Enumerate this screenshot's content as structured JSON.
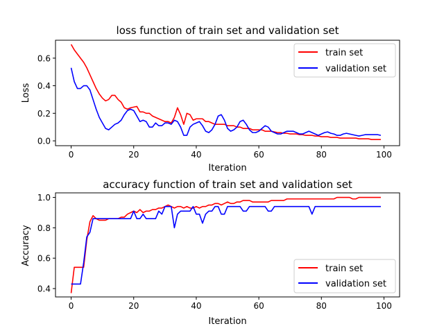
{
  "chart_data": [
    {
      "type": "line",
      "title": "loss function of train set and validation set",
      "xlabel": "Iteration",
      "ylabel": "Loss",
      "xlim": [
        -5,
        105
      ],
      "ylim": [
        -0.035,
        0.73
      ],
      "xticks": [
        0,
        20,
        40,
        60,
        80,
        100
      ],
      "xtick_labels": [
        "0",
        "20",
        "40",
        "60",
        "80",
        "100"
      ],
      "yticks": [
        0.0,
        0.2,
        0.4,
        0.6
      ],
      "ytick_labels": [
        "0.0",
        "0.2",
        "0.4",
        "0.6"
      ],
      "grid": false,
      "legend_position": "upper right",
      "series": [
        {
          "name": "train set",
          "color": "#ff0000",
          "x": [
            0,
            1,
            2,
            3,
            4,
            5,
            6,
            7,
            8,
            9,
            10,
            11,
            12,
            13,
            14,
            15,
            16,
            17,
            18,
            19,
            20,
            21,
            22,
            23,
            24,
            25,
            26,
            27,
            28,
            29,
            30,
            31,
            32,
            33,
            34,
            35,
            36,
            37,
            38,
            39,
            40,
            41,
            42,
            43,
            44,
            45,
            46,
            47,
            48,
            49,
            50,
            51,
            52,
            53,
            54,
            55,
            56,
            57,
            58,
            59,
            60,
            61,
            62,
            63,
            64,
            65,
            66,
            67,
            68,
            69,
            70,
            71,
            72,
            73,
            74,
            75,
            76,
            77,
            78,
            79,
            80,
            81,
            82,
            83,
            84,
            85,
            86,
            87,
            88,
            89,
            90,
            91,
            92,
            93,
            94,
            95,
            96,
            97,
            98,
            99
          ],
          "values": [
            0.7,
            0.66,
            0.63,
            0.6,
            0.57,
            0.53,
            0.48,
            0.43,
            0.38,
            0.34,
            0.31,
            0.29,
            0.3,
            0.33,
            0.33,
            0.3,
            0.28,
            0.24,
            0.23,
            0.24,
            0.245,
            0.25,
            0.21,
            0.21,
            0.2,
            0.2,
            0.18,
            0.17,
            0.16,
            0.15,
            0.14,
            0.14,
            0.13,
            0.17,
            0.24,
            0.19,
            0.12,
            0.2,
            0.19,
            0.15,
            0.16,
            0.16,
            0.16,
            0.14,
            0.14,
            0.13,
            0.12,
            0.12,
            0.12,
            0.12,
            0.11,
            0.11,
            0.11,
            0.1,
            0.1,
            0.09,
            0.09,
            0.09,
            0.08,
            0.08,
            0.08,
            0.08,
            0.07,
            0.07,
            0.07,
            0.065,
            0.06,
            0.06,
            0.055,
            0.055,
            0.05,
            0.05,
            0.05,
            0.045,
            0.045,
            0.04,
            0.04,
            0.04,
            0.035,
            0.035,
            0.03,
            0.03,
            0.03,
            0.025,
            0.025,
            0.025,
            0.02,
            0.02,
            0.02,
            0.02,
            0.02,
            0.02,
            0.015,
            0.015,
            0.015,
            0.015,
            0.01,
            0.01,
            0.01,
            0.01
          ]
        },
        {
          "name": "validation set",
          "color": "#0000ff",
          "x": [
            0,
            1,
            2,
            3,
            4,
            5,
            6,
            7,
            8,
            9,
            10,
            11,
            12,
            13,
            14,
            15,
            16,
            17,
            18,
            19,
            20,
            21,
            22,
            23,
            24,
            25,
            26,
            27,
            28,
            29,
            30,
            31,
            32,
            33,
            34,
            35,
            36,
            37,
            38,
            39,
            40,
            41,
            42,
            43,
            44,
            45,
            46,
            47,
            48,
            49,
            50,
            51,
            52,
            53,
            54,
            55,
            56,
            57,
            58,
            59,
            60,
            61,
            62,
            63,
            64,
            65,
            66,
            67,
            68,
            69,
            70,
            71,
            72,
            73,
            74,
            75,
            76,
            77,
            78,
            79,
            80,
            81,
            82,
            83,
            84,
            85,
            86,
            87,
            88,
            89,
            90,
            91,
            92,
            93,
            94,
            95,
            96,
            97,
            98,
            99
          ],
          "values": [
            0.53,
            0.43,
            0.38,
            0.38,
            0.4,
            0.4,
            0.37,
            0.3,
            0.23,
            0.17,
            0.13,
            0.09,
            0.08,
            0.1,
            0.12,
            0.13,
            0.15,
            0.19,
            0.22,
            0.23,
            0.22,
            0.18,
            0.14,
            0.15,
            0.14,
            0.1,
            0.1,
            0.13,
            0.11,
            0.11,
            0.13,
            0.13,
            0.12,
            0.15,
            0.14,
            0.1,
            0.04,
            0.04,
            0.1,
            0.12,
            0.13,
            0.14,
            0.11,
            0.07,
            0.06,
            0.08,
            0.12,
            0.18,
            0.19,
            0.15,
            0.09,
            0.07,
            0.08,
            0.1,
            0.14,
            0.15,
            0.12,
            0.08,
            0.06,
            0.06,
            0.07,
            0.09,
            0.11,
            0.1,
            0.07,
            0.06,
            0.05,
            0.05,
            0.06,
            0.07,
            0.07,
            0.07,
            0.06,
            0.05,
            0.05,
            0.06,
            0.07,
            0.06,
            0.05,
            0.04,
            0.05,
            0.06,
            0.065,
            0.055,
            0.05,
            0.04,
            0.04,
            0.05,
            0.055,
            0.05,
            0.045,
            0.04,
            0.035,
            0.04,
            0.045,
            0.045,
            0.045,
            0.045,
            0.045,
            0.04
          ]
        }
      ]
    },
    {
      "type": "line",
      "title": "accuracy function of train set and validation set",
      "xlabel": "Iteration",
      "ylabel": "Accuracy",
      "xlim": [
        -5,
        105
      ],
      "ylim": [
        0.345,
        1.03
      ],
      "xticks": [
        0,
        20,
        40,
        60,
        80,
        100
      ],
      "xtick_labels": [
        "0",
        "20",
        "40",
        "60",
        "80",
        "100"
      ],
      "yticks": [
        0.4,
        0.6,
        0.8,
        1.0
      ],
      "ytick_labels": [
        "0.4",
        "0.6",
        "0.8",
        "1.0"
      ],
      "grid": false,
      "legend_position": "lower right",
      "series": [
        {
          "name": "train set",
          "color": "#ff0000",
          "x": [
            0,
            1,
            2,
            3,
            4,
            5,
            6,
            7,
            8,
            9,
            10,
            11,
            12,
            13,
            14,
            15,
            16,
            17,
            18,
            19,
            20,
            21,
            22,
            23,
            24,
            25,
            26,
            27,
            28,
            29,
            30,
            31,
            32,
            33,
            34,
            35,
            36,
            37,
            38,
            39,
            40,
            41,
            42,
            43,
            44,
            45,
            46,
            47,
            48,
            49,
            50,
            51,
            52,
            53,
            54,
            55,
            56,
            57,
            58,
            59,
            60,
            61,
            62,
            63,
            64,
            65,
            66,
            67,
            68,
            69,
            70,
            71,
            72,
            73,
            74,
            75,
            76,
            77,
            78,
            79,
            80,
            81,
            82,
            83,
            84,
            85,
            86,
            87,
            88,
            89,
            90,
            91,
            92,
            93,
            94,
            95,
            96,
            97,
            98,
            99
          ],
          "values": [
            0.37,
            0.54,
            0.54,
            0.54,
            0.54,
            0.72,
            0.84,
            0.88,
            0.86,
            0.85,
            0.85,
            0.85,
            0.86,
            0.86,
            0.86,
            0.86,
            0.87,
            0.87,
            0.89,
            0.9,
            0.91,
            0.9,
            0.92,
            0.9,
            0.91,
            0.91,
            0.92,
            0.92,
            0.93,
            0.93,
            0.94,
            0.95,
            0.94,
            0.93,
            0.94,
            0.94,
            0.93,
            0.94,
            0.93,
            0.93,
            0.94,
            0.93,
            0.94,
            0.94,
            0.95,
            0.95,
            0.96,
            0.96,
            0.95,
            0.96,
            0.97,
            0.96,
            0.96,
            0.97,
            0.97,
            0.98,
            0.98,
            0.98,
            0.97,
            0.97,
            0.97,
            0.97,
            0.97,
            0.97,
            0.98,
            0.98,
            0.98,
            0.98,
            0.98,
            0.99,
            0.99,
            0.99,
            0.99,
            0.99,
            0.99,
            0.99,
            0.99,
            0.99,
            0.99,
            0.99,
            0.99,
            0.99,
            0.99,
            0.99,
            0.99,
            1.0,
            1.0,
            1.0,
            1.0,
            1.0,
            0.99,
            0.99,
            1.0,
            1.0,
            1.0,
            1.0,
            1.0,
            1.0,
            1.0,
            1.0
          ]
        },
        {
          "name": "validation set",
          "color": "#0000ff",
          "x": [
            0,
            1,
            2,
            3,
            4,
            5,
            6,
            7,
            8,
            9,
            10,
            11,
            12,
            13,
            14,
            15,
            16,
            17,
            18,
            19,
            20,
            21,
            22,
            23,
            24,
            25,
            26,
            27,
            28,
            29,
            30,
            31,
            32,
            33,
            34,
            35,
            36,
            37,
            38,
            39,
            40,
            41,
            42,
            43,
            44,
            45,
            46,
            47,
            48,
            49,
            50,
            51,
            52,
            53,
            54,
            55,
            56,
            57,
            58,
            59,
            60,
            61,
            62,
            63,
            64,
            65,
            66,
            67,
            68,
            69,
            70,
            71,
            72,
            73,
            74,
            75,
            76,
            77,
            78,
            79,
            80,
            81,
            82,
            83,
            84,
            85,
            86,
            87,
            88,
            89,
            90,
            91,
            92,
            93,
            94,
            95,
            96,
            97,
            98,
            99
          ],
          "values": [
            0.43,
            0.43,
            0.43,
            0.43,
            0.57,
            0.74,
            0.77,
            0.86,
            0.86,
            0.86,
            0.86,
            0.86,
            0.86,
            0.86,
            0.86,
            0.86,
            0.86,
            0.86,
            0.86,
            0.86,
            0.91,
            0.86,
            0.86,
            0.89,
            0.86,
            0.86,
            0.86,
            0.86,
            0.91,
            0.89,
            0.94,
            0.94,
            0.94,
            0.8,
            0.89,
            0.91,
            0.91,
            0.91,
            0.91,
            0.94,
            0.89,
            0.89,
            0.83,
            0.89,
            0.91,
            0.91,
            0.94,
            0.94,
            0.89,
            0.89,
            0.94,
            0.94,
            0.94,
            0.94,
            0.94,
            0.91,
            0.91,
            0.94,
            0.94,
            0.94,
            0.94,
            0.94,
            0.94,
            0.91,
            0.91,
            0.94,
            0.94,
            0.94,
            0.94,
            0.94,
            0.94,
            0.94,
            0.94,
            0.94,
            0.94,
            0.94,
            0.94,
            0.89,
            0.94,
            0.94,
            0.94,
            0.94,
            0.94,
            0.94,
            0.94,
            0.94,
            0.94,
            0.94,
            0.94,
            0.94,
            0.94,
            0.94,
            0.94,
            0.94,
            0.94,
            0.94,
            0.94,
            0.94,
            0.94,
            0.94
          ]
        }
      ]
    }
  ]
}
